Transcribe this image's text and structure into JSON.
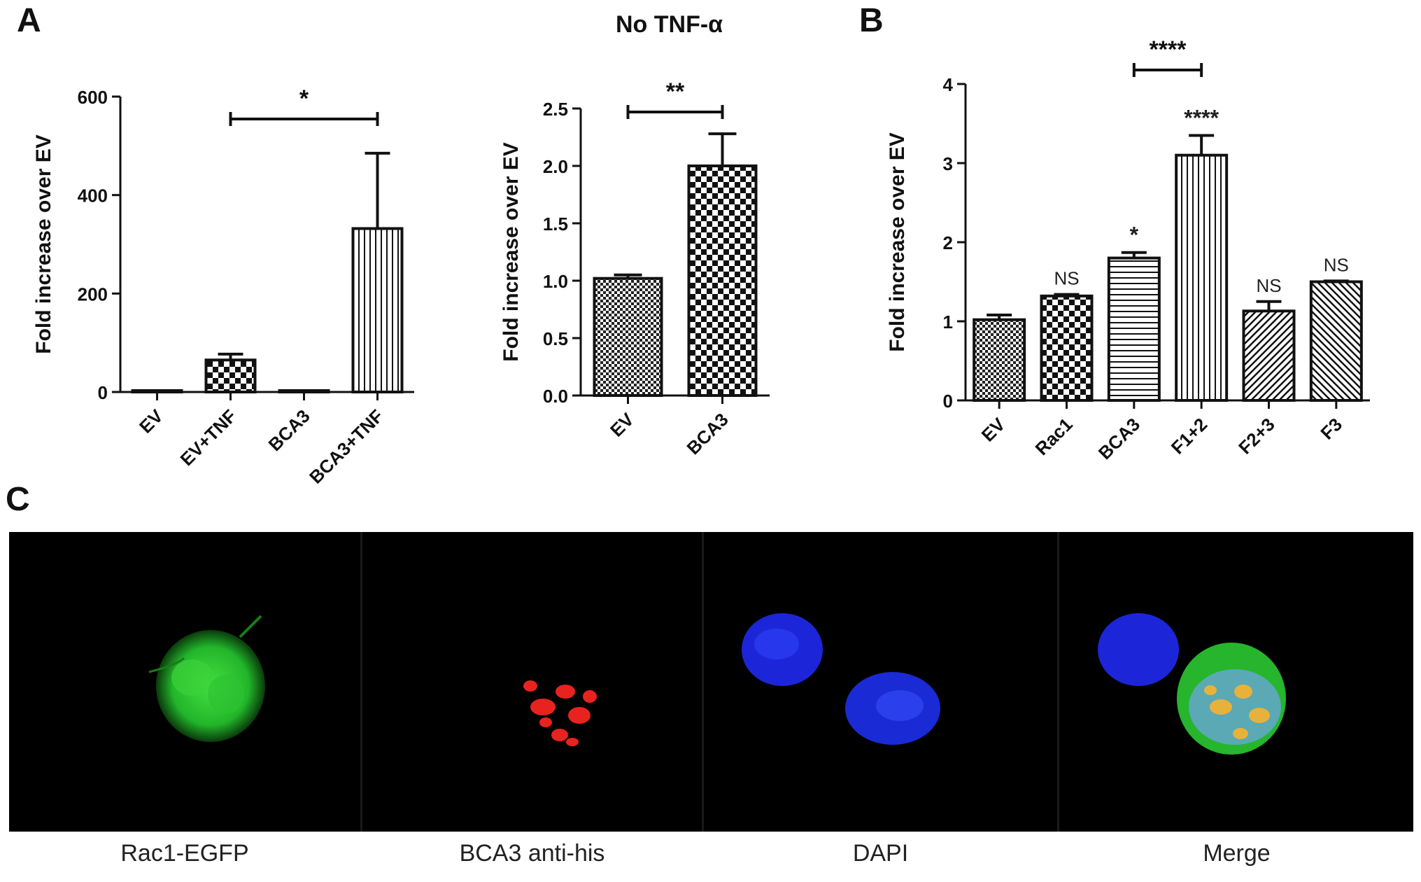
{
  "panels": {
    "a": "A",
    "b": "B",
    "c": "C"
  },
  "a2_title": "No TNF-α",
  "chart_data": [
    {
      "type": "bar",
      "categories": [
        "EV",
        "EV+TNF",
        "BCA3",
        "BCA3+TNF"
      ],
      "values": [
        1,
        65,
        1,
        332
      ],
      "errors": [
        0,
        12,
        0,
        153
      ],
      "patterns": [
        "plain",
        "checker",
        "plain",
        "vertical"
      ],
      "title": "",
      "xlabel": "",
      "ylabel": "Fold increase over EV",
      "ylim": [
        0,
        600
      ],
      "yticks": [
        "0",
        "200",
        "400",
        "600"
      ],
      "brackets": [
        {
          "from": 1,
          "to": 3,
          "label": "*"
        }
      ],
      "bar_labels": []
    },
    {
      "type": "bar",
      "categories": [
        "EV",
        "BCA3"
      ],
      "values": [
        1.02,
        2.0
      ],
      "errors": [
        0.03,
        0.28
      ],
      "patterns": [
        "smallchecker",
        "checker"
      ],
      "title": "No TNF-α",
      "xlabel": "",
      "ylabel": "Fold increase over EV",
      "ylim": [
        0,
        2.5
      ],
      "yticks": [
        "0.0",
        "0.5",
        "1.0",
        "1.5",
        "2.0",
        "2.5"
      ],
      "brackets": [
        {
          "from": 0,
          "to": 1,
          "label": "**"
        }
      ],
      "bar_labels": []
    },
    {
      "type": "bar",
      "categories": [
        "EV",
        "Rac1",
        "BCA3",
        "F1+2",
        "F2+3",
        "F3"
      ],
      "values": [
        1.02,
        1.32,
        1.8,
        3.1,
        1.13,
        1.5
      ],
      "errors": [
        0.06,
        0.02,
        0.07,
        0.25,
        0.12,
        0.01
      ],
      "patterns": [
        "smallchecker",
        "checker",
        "horizontal",
        "vertical",
        "diagonal",
        "backdiagonal"
      ],
      "title": "",
      "xlabel": "",
      "ylabel": "Fold increase over EV",
      "ylim": [
        0,
        4
      ],
      "yticks": [
        "0",
        "1",
        "2",
        "3",
        "4"
      ],
      "brackets": [
        {
          "from": 2,
          "to": 3,
          "label": "****"
        }
      ],
      "bar_labels": [
        "",
        "NS",
        "*",
        "****",
        "NS",
        "NS"
      ]
    }
  ],
  "microscopy": {
    "labels": [
      "Rac1-EGFP",
      "BCA3 anti-his",
      "DAPI",
      "Merge"
    ],
    "channel_colors": [
      "#22c02a",
      "#e8231f",
      "#1f2fe0",
      "#e8b23a"
    ]
  }
}
